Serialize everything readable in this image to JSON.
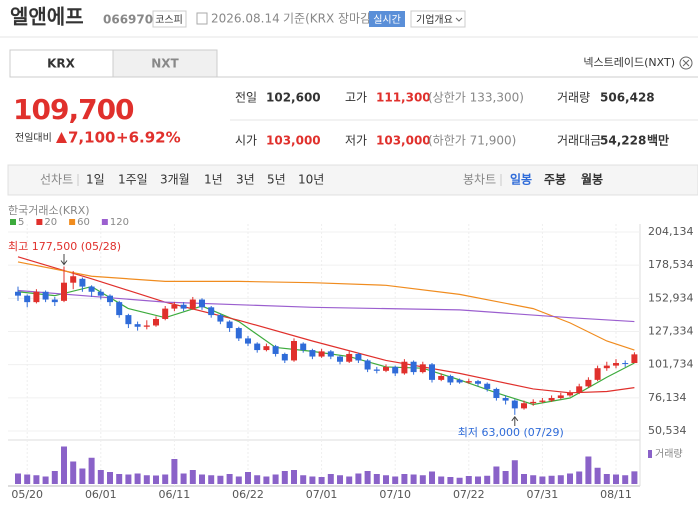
{
  "header": {
    "name": "엘앤에프",
    "code": "066970",
    "market": "코스피",
    "date": "2026.08.14",
    "basis": "기준(KRX 장마감)",
    "realtime": "실시간",
    "overview": "기업개요"
  },
  "tabs": [
    "KRX",
    "NXT"
  ],
  "nxt_link": "넥스트레이드(NXT)",
  "price": {
    "current": "109,700",
    "change_label": "전일대비",
    "change": "7,100",
    "rate": "+6.92%"
  },
  "stats": [
    {
      "label": "전일",
      "value": "102,600"
    },
    {
      "label": "고가",
      "value": "111,300",
      "note": "(상한가 133,300)"
    },
    {
      "label": "거래량",
      "value": "506,428"
    },
    {
      "label": "시가",
      "value": "103,000"
    },
    {
      "label": "저가",
      "value": "103,000",
      "note": "(하한가 71,900)"
    },
    {
      "label": "거래대금",
      "value": "54,228",
      "unit": "백만"
    }
  ],
  "periods": {
    "line_label": "선차트",
    "line": [
      "1일",
      "1주일",
      "3개월",
      "1년",
      "3년",
      "5년",
      "10년"
    ],
    "candle_label": "봉차트",
    "candle": [
      "일봉",
      "주봉",
      "월봉"
    ]
  },
  "chart_data": {
    "type": "candlestick",
    "source": "한국거래소(KRX)",
    "up_color": "#e0302c",
    "down_color": "#2f6bd8",
    "open": [
      158000,
      155000,
      150000,
      158000,
      152000,
      151000,
      165000,
      168000,
      162000,
      158000,
      155000,
      150000,
      140000,
      133000,
      131000,
      132000,
      137000,
      145000,
      148000,
      145000,
      152000,
      146000,
      140000,
      135000,
      130000,
      122000,
      118000,
      113000,
      116000,
      110000,
      105000,
      118000,
      113000,
      108000,
      112000,
      108000,
      104000,
      110000,
      105000,
      98000,
      97000,
      100000,
      95000,
      104000,
      96000,
      102000,
      90000,
      93000,
      90000,
      88000,
      89000,
      87000,
      83000,
      76000,
      74000,
      68000,
      72000,
      73000,
      74000,
      76000,
      78000,
      80000,
      85000,
      90000,
      99000,
      101000,
      103000,
      103000
    ],
    "high": [
      162000,
      156000,
      160000,
      159000,
      154000,
      177500,
      174000,
      169000,
      163000,
      160000,
      156000,
      151000,
      141000,
      135000,
      136000,
      139000,
      147000,
      150000,
      150000,
      154000,
      153000,
      147000,
      141000,
      136000,
      131000,
      124000,
      119000,
      118000,
      117000,
      111000,
      122000,
      119000,
      114000,
      114000,
      113000,
      109000,
      112000,
      111000,
      106000,
      100000,
      102000,
      101000,
      106000,
      105000,
      104000,
      103000,
      95000,
      94000,
      91000,
      91000,
      90000,
      88000,
      84000,
      78000,
      75000,
      74000,
      75000,
      76000,
      78000,
      80000,
      82000,
      87000,
      92000,
      101000,
      104000,
      106000,
      105000,
      111300
    ],
    "low": [
      151000,
      146000,
      149000,
      150000,
      147000,
      150000,
      160000,
      158000,
      154000,
      152000,
      147000,
      138000,
      130000,
      128000,
      129000,
      131000,
      136000,
      143000,
      143000,
      144000,
      144000,
      138000,
      133000,
      127000,
      120000,
      116000,
      111000,
      112000,
      108000,
      103000,
      104000,
      111000,
      106000,
      107000,
      106000,
      102000,
      103000,
      103000,
      96000,
      95000,
      96000,
      93000,
      94000,
      94000,
      95000,
      88000,
      89000,
      86000,
      87000,
      87000,
      85000,
      81000,
      74000,
      71000,
      63000,
      67000,
      70000,
      72000,
      73000,
      75000,
      77000,
      79000,
      84000,
      89000,
      97000,
      99000,
      100000,
      103000
    ],
    "close": [
      155000,
      150000,
      158000,
      152000,
      150000,
      165000,
      170000,
      162000,
      158000,
      155000,
      150000,
      140000,
      133000,
      131000,
      132000,
      137000,
      145000,
      148000,
      145000,
      152000,
      146000,
      140000,
      135000,
      130000,
      122000,
      118000,
      113000,
      116000,
      110000,
      105000,
      120000,
      113000,
      108000,
      112000,
      108000,
      104000,
      110000,
      105000,
      98000,
      97000,
      100000,
      95000,
      104000,
      96000,
      102000,
      90000,
      93000,
      88000,
      88000,
      89000,
      87000,
      83000,
      76000,
      74000,
      68000,
      72000,
      73000,
      74000,
      76000,
      78000,
      80000,
      85000,
      90000,
      99000,
      101000,
      103000,
      102600,
      109700
    ],
    "ma": [
      {
        "name": "5",
        "color": "#3dab3d",
        "x": [
          0,
          4,
          8,
          12,
          16,
          20,
          24,
          28,
          32,
          36,
          40,
          44,
          48,
          52,
          56,
          60,
          64,
          67
        ],
        "values": [
          158000,
          155000,
          162000,
          145000,
          138000,
          147000,
          135000,
          115000,
          112000,
          108000,
          100000,
          99000,
          90000,
          80000,
          71000,
          76000,
          92000,
          103000
        ]
      },
      {
        "name": "20",
        "color": "#e0302c",
        "x": [
          0,
          8,
          16,
          24,
          32,
          40,
          48,
          52,
          56,
          60,
          64,
          67
        ],
        "values": [
          185000,
          168000,
          150000,
          136000,
          120000,
          105000,
          95000,
          89000,
          83000,
          80000,
          81000,
          84000
        ]
      },
      {
        "name": "60",
        "color": "#f08c1f",
        "x": [
          0,
          8,
          16,
          24,
          32,
          40,
          48,
          56,
          60,
          64,
          67
        ],
        "values": [
          181000,
          170000,
          166000,
          166000,
          165000,
          163000,
          156000,
          145000,
          134000,
          120000,
          113000
        ]
      },
      {
        "name": "120",
        "color": "#9b5fcf",
        "x": [
          0,
          16,
          32,
          48,
          60,
          67
        ],
        "values": [
          159000,
          150000,
          146000,
          144000,
          138000,
          135000
        ]
      }
    ],
    "volume": {
      "name": "거래량",
      "color": "#8a62c8",
      "values": [
        420000,
        380000,
        350000,
        300000,
        520000,
        1500000,
        900000,
        620000,
        1050000,
        560000,
        480000,
        400000,
        380000,
        420000,
        350000,
        340000,
        380000,
        1000000,
        420000,
        560000,
        380000,
        350000,
        330000,
        400000,
        300000,
        480000,
        350000,
        300000,
        380000,
        520000,
        560000,
        350000,
        300000,
        280000,
        400000,
        350000,
        300000,
        420000,
        520000,
        400000,
        350000,
        300000,
        400000,
        380000,
        350000,
        500000,
        300000,
        280000,
        250000,
        320000,
        300000,
        330000,
        700000,
        520000,
        950000,
        400000,
        350000,
        300000,
        330000,
        350000,
        420000,
        500000,
        1100000,
        650000,
        400000,
        380000,
        350000,
        506428
      ]
    },
    "volume_lim": [
      0,
      1600000
    ],
    "ylim": [
      50534,
      204134
    ],
    "yticks": [
      {
        "value": 204134,
        "label": "204,134"
      },
      {
        "value": 178534,
        "label": "178,534"
      },
      {
        "value": 152934,
        "label": "152,934"
      },
      {
        "value": 127334,
        "label": "127,334"
      },
      {
        "value": 101734,
        "label": "101,734"
      },
      {
        "value": 76134,
        "label": "76,134"
      },
      {
        "value": 50534,
        "label": "50,534"
      }
    ],
    "xticks": [
      {
        "value": 1,
        "label": "05/20"
      },
      {
        "value": 9,
        "label": "06/01"
      },
      {
        "value": 17,
        "label": "06/11"
      },
      {
        "value": 25,
        "label": "06/22"
      },
      {
        "value": 33,
        "label": "07/01"
      },
      {
        "value": 41,
        "label": "07/10"
      },
      {
        "value": 49,
        "label": "07/22"
      },
      {
        "value": 57,
        "label": "07/31"
      },
      {
        "value": 65,
        "label": "08/11"
      }
    ],
    "annotations": [
      {
        "text": "최고 177,500 (05/28)",
        "x": 5,
        "value": 177500
      },
      {
        "text": "최저 63,000 (07/29)",
        "x": 54,
        "value": 63000
      }
    ]
  }
}
